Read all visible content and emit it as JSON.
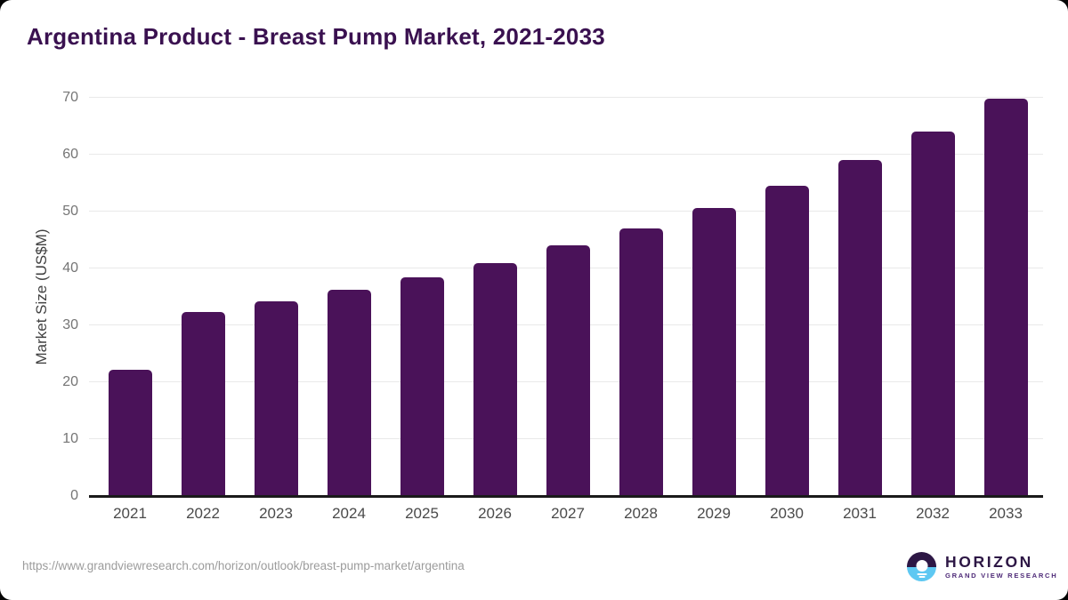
{
  "title": "Argentina Product - Breast Pump Market, 2021-2033",
  "chart_data": {
    "type": "bar",
    "title": "Argentina Product - Breast Pump Market, 2021-2033",
    "categories": [
      "2021",
      "2022",
      "2023",
      "2024",
      "2025",
      "2026",
      "2027",
      "2028",
      "2029",
      "2030",
      "2031",
      "2032",
      "2033"
    ],
    "values": [
      22.2,
      32.3,
      34.2,
      36.2,
      38.5,
      41.0,
      44.0,
      47.1,
      50.7,
      54.5,
      59.0,
      64.1,
      69.8
    ],
    "xlabel": "",
    "ylabel": "Market Size (US$M)",
    "ylim": [
      0,
      70
    ],
    "yticks": [
      0,
      10,
      20,
      30,
      40,
      50,
      60,
      70
    ],
    "grid": true,
    "legend": "none",
    "bar_color": "#4a1259"
  },
  "footer": {
    "source_url": "https://www.grandviewresearch.com/horizon/outlook/breast-pump-market/argentina",
    "logo": {
      "name": "HORIZON",
      "subtitle": "GRAND VIEW RESEARCH"
    }
  },
  "colors": {
    "title_text": "#3a1150",
    "bar": "#4a1259",
    "gridline": "#e9e9e9",
    "axis_line": "#1a1a1a",
    "y_tick_text": "#757575",
    "x_tick_text": "#4a4a4a",
    "url_text": "#9c9c9c",
    "logo_dark_purple": "#2d1745",
    "logo_light_blue": "#5ec8f2",
    "logo_subtitle_purple": "#4e2a78",
    "card_background": "#ffffff",
    "page_background": "#050505"
  }
}
